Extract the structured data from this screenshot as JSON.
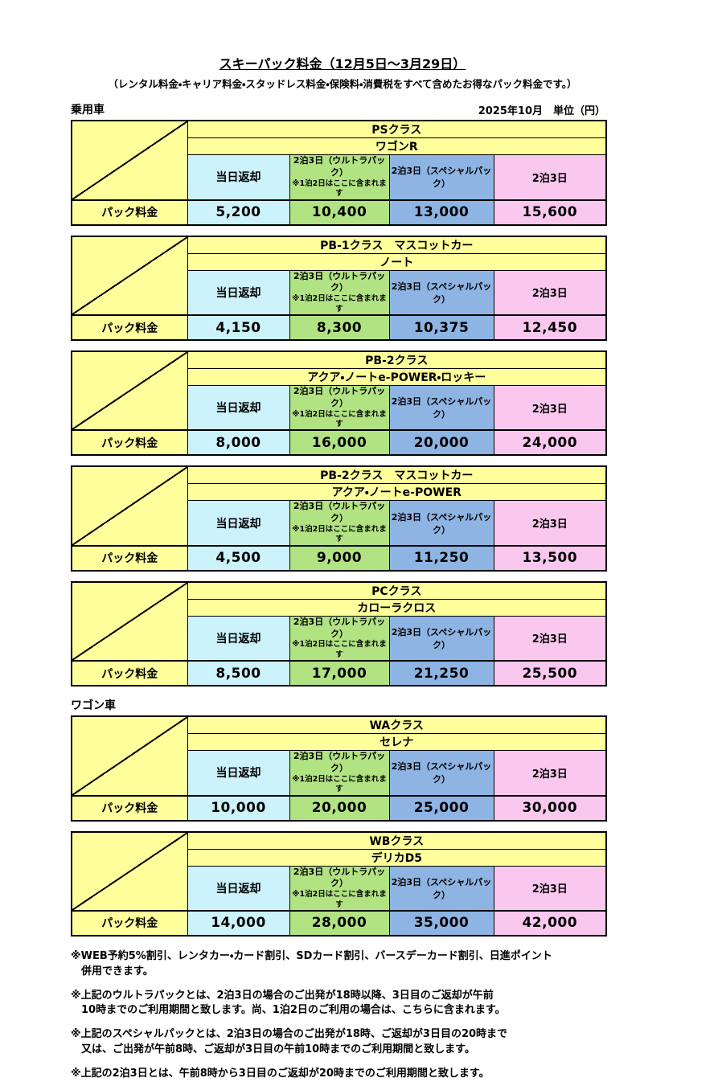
{
  "page": {
    "title": "スキーパック料金（12月5日～3月29日）",
    "subtitle": "（レンタル料金・キャリア料金・スタッドレス料金・保険料・消費税をすべて含めたお得なパック料金です。）",
    "date_note": "2025年10月　単位（円）"
  },
  "column_headers": {
    "row_label": "パック料金",
    "same_day": "当日返却",
    "ultra_line1": "2泊3日（ウルトラパック）",
    "ultra_line2": "※1泊2日はここに含まれます",
    "special": "2泊3日（スペシャルパック）",
    "two_nights": "2泊3日"
  },
  "colors": {
    "yellow": "#FFFF9C",
    "cyan": "#CCF2FB",
    "green": "#B2E383",
    "blue": "#8DB4E2",
    "pink": "#FAC8EF",
    "border": "#000000"
  },
  "sections": [
    {
      "label": "乗用車",
      "show_date_note": true,
      "tables": [
        {
          "class_name": "PSクラス",
          "car_name": "ワゴンR",
          "prices": [
            "5,200",
            "10,400",
            "13,000",
            "15,600"
          ]
        },
        {
          "class_name": "PB-1クラス　マスコットカー",
          "car_name": "ノート",
          "prices": [
            "4,150",
            "8,300",
            "10,375",
            "12,450"
          ]
        },
        {
          "class_name": "PB-2クラス",
          "car_name": "アクア・ノートe-POWER・ロッキー",
          "prices": [
            "8,000",
            "16,000",
            "20,000",
            "24,000"
          ]
        },
        {
          "class_name": "PB-2クラス　マスコットカー",
          "car_name": "アクア・ノートe-POWER",
          "prices": [
            "4,500",
            "9,000",
            "11,250",
            "13,500"
          ]
        },
        {
          "class_name": "PCクラス",
          "car_name": "カローラクロス",
          "prices": [
            "8,500",
            "17,000",
            "21,250",
            "25,500"
          ]
        }
      ]
    },
    {
      "label": "ワゴン車",
      "show_date_note": false,
      "tables": [
        {
          "class_name": "WAクラス",
          "car_name": "セレナ",
          "prices": [
            "10,000",
            "20,000",
            "25,000",
            "30,000"
          ]
        },
        {
          "class_name": "WBクラス",
          "car_name": "デリカD5",
          "prices": [
            "14,000",
            "28,000",
            "35,000",
            "42,000"
          ]
        }
      ]
    }
  ],
  "footnotes": [
    "※WEB予約5%割引、レンタカー・カード割引、SDカード割引、バースデーカード割引、日進ポイント\n　併用できます。",
    "※上記のウルトラパックとは、2泊3日の場合のご出発が18時以降、3日目のご返却が午前\n　10時までのご利用期間と致します。尚、1泊2日のご利用の場合は、こちらに含まれます。",
    "※上記のスペシャルパックとは、2泊3日の場合のご出発が18時、ご返却が3日目の20時まで\n　又は、ご出発が午前8時、ご返却が3日目の午前10時までのご利用期間と致します。",
    "※上記の2泊3日とは、午前8時から3日目のご返却が20時までのご利用期間と致します。"
  ]
}
